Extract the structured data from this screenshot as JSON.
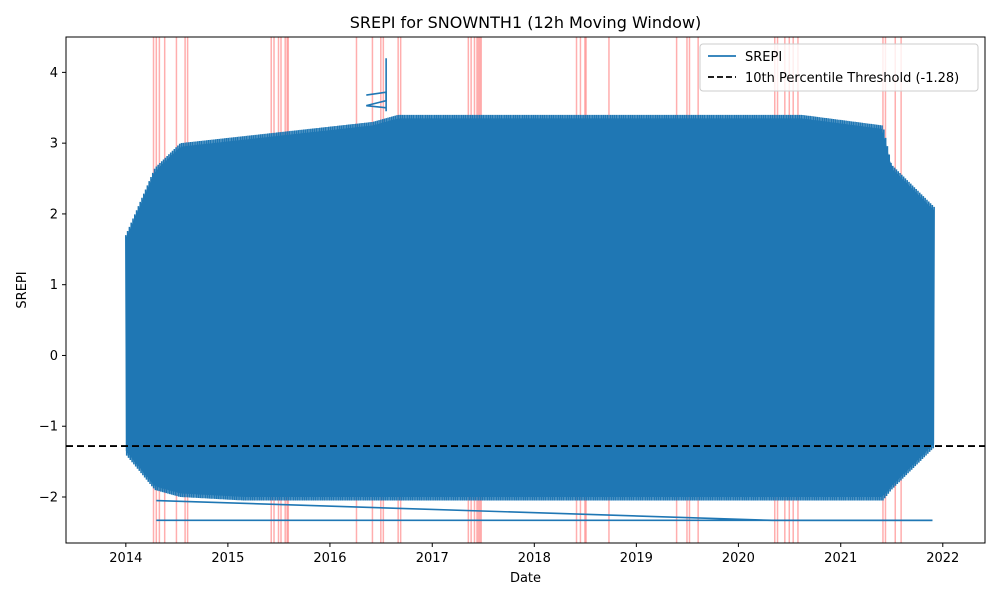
{
  "chart_data": {
    "type": "line",
    "title": "SREPI for SNOWNTH1 (12h Moving Window)",
    "xlabel": "Date",
    "ylabel": "SREPI",
    "xlim": [
      "2013-06-01",
      "2022-06-01"
    ],
    "ylim": [
      -2.65,
      4.5
    ],
    "x_ticks": [
      "2014",
      "2015",
      "2016",
      "2017",
      "2018",
      "2019",
      "2020",
      "2021",
      "2022"
    ],
    "y_ticks": [
      -2,
      -1,
      0,
      1,
      2,
      3,
      4
    ],
    "legend": {
      "placement": "upper-right",
      "entries": [
        "SREPI",
        "10th Percentile Threshold (-1.28)"
      ]
    },
    "grid": false,
    "series": [
      {
        "name": "SREPI",
        "color": "#1f77b4",
        "style": "dense oscillating line",
        "envelope": [
          {
            "date": "2014-01-01",
            "min": -1.4,
            "max": 1.7
          },
          {
            "date": "2014-04-15",
            "min": -1.9,
            "max": 2.65
          },
          {
            "date": "2014-07-15",
            "min": -2.0,
            "max": 3.0
          },
          {
            "date": "2015-03-01",
            "min": -2.05,
            "max": 3.1
          },
          {
            "date": "2016-06-01",
            "min": -2.05,
            "max": 3.3
          },
          {
            "date": "2016-09-01",
            "min": -2.05,
            "max": 3.4
          },
          {
            "date": "2019-09-01",
            "min": -2.05,
            "max": 3.4
          },
          {
            "date": "2020-08-15",
            "min": -2.05,
            "max": 3.4
          },
          {
            "date": "2021-06-01",
            "min": -2.05,
            "max": 3.25
          },
          {
            "date": "2021-07-01",
            "min": -1.9,
            "max": 2.7
          },
          {
            "date": "2021-12-01",
            "min": -1.3,
            "max": 2.1
          }
        ],
        "notable_points": [
          {
            "date": "2016-07-20",
            "value": 4.2
          },
          {
            "date": "2016-05-10",
            "value": 3.68
          },
          {
            "date": "2016-05-10",
            "value": 3.53
          },
          {
            "date": "2014-04-20",
            "value": -2.33
          },
          {
            "date": "2021-11-25",
            "value": -2.33
          }
        ]
      },
      {
        "name": "10th Percentile Threshold (-1.28)",
        "color": "#000000",
        "style": "dashed horizontal",
        "value": -1.28
      }
    ],
    "highlight_dates": [
      "2014-04-10",
      "2014-04-20",
      "2014-05-01",
      "2014-05-20",
      "2014-07-01",
      "2014-08-01",
      "2014-08-10",
      "2015-06-05",
      "2015-06-15",
      "2015-07-01",
      "2015-07-10",
      "2015-07-25",
      "2015-08-01",
      "2015-08-05",
      "2016-04-05",
      "2016-06-01",
      "2016-07-01",
      "2016-07-10",
      "2016-09-01",
      "2016-09-10",
      "2017-05-10",
      "2017-05-20",
      "2017-06-01",
      "2017-06-10",
      "2017-06-15",
      "2017-06-20",
      "2017-06-25",
      "2018-06-01",
      "2018-06-15",
      "2018-07-01",
      "2018-07-05",
      "2018-09-25",
      "2019-05-25",
      "2019-07-01",
      "2019-07-10",
      "2019-08-10",
      "2020-05-10",
      "2020-05-20",
      "2020-06-15",
      "2020-07-01",
      "2020-07-15",
      "2020-08-01",
      "2021-06-01",
      "2021-06-10",
      "2021-07-15",
      "2021-08-05"
    ],
    "highlight_color": "#ff6b6b"
  }
}
